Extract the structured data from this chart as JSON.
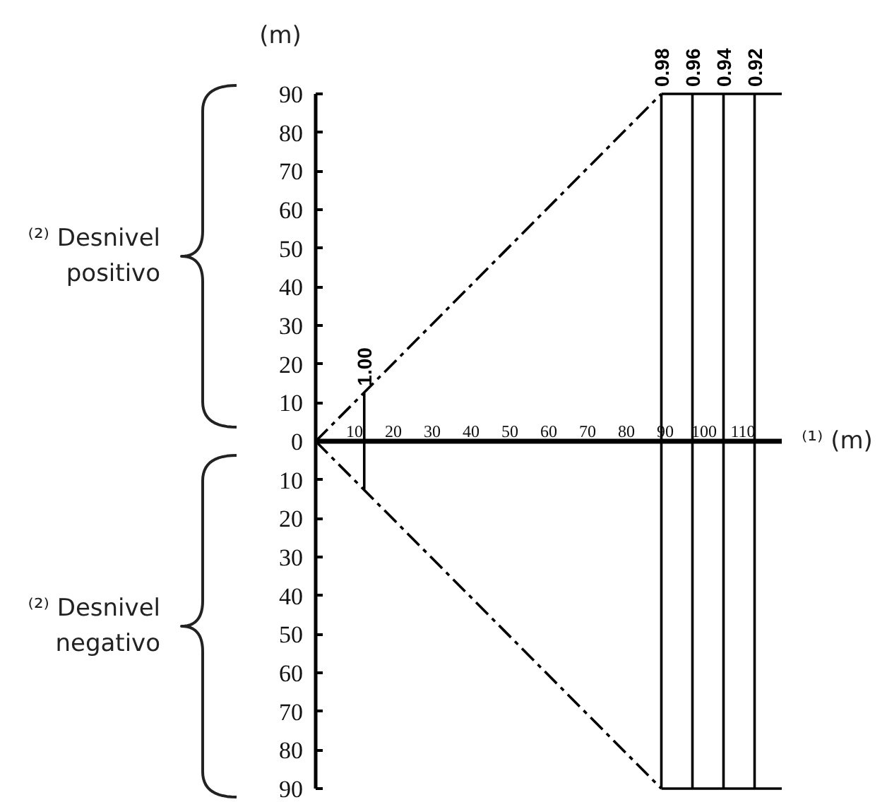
{
  "chart_data": {
    "type": "line",
    "xlabel": "⁽¹⁾ (m)",
    "ylabel": "(m)",
    "xlim": [
      0,
      120
    ],
    "xticks": [
      10,
      20,
      30,
      40,
      50,
      60,
      70,
      80,
      90,
      100,
      110
    ],
    "ylim": [
      -90,
      90
    ],
    "yticks": [
      {
        "value": -90,
        "label": "90"
      },
      {
        "value": -80,
        "label": "80"
      },
      {
        "value": -70,
        "label": "70"
      },
      {
        "value": -60,
        "label": "60"
      },
      {
        "value": -50,
        "label": "50"
      },
      {
        "value": -40,
        "label": "40"
      },
      {
        "value": -30,
        "label": "30"
      },
      {
        "value": -20,
        "label": "20"
      },
      {
        "value": -10,
        "label": "10"
      },
      0,
      10,
      20,
      30,
      40,
      50,
      60,
      70,
      80,
      90
    ],
    "series": [
      {
        "color": "#000000",
        "line_style": "dashed",
        "x": [
          0,
          89
        ],
        "values": [
          0,
          90
        ]
      },
      {
        "color": "#000000",
        "line_style": "dashed",
        "x": [
          0,
          89
        ],
        "values": [
          0,
          -90
        ]
      },
      {
        "color": "#000000",
        "x": [
          89,
          120
        ],
        "values": [
          90,
          90
        ]
      },
      {
        "color": "#000000",
        "x": [
          89,
          120
        ],
        "values": [
          -90,
          -90
        ]
      },
      {
        "name": "1.00",
        "color": "#000000",
        "x": [
          12.5,
          12.5
        ],
        "values": [
          12.5,
          -12.5
        ]
      },
      {
        "name": "0.98",
        "color": "#000000",
        "x": [
          89,
          89
        ],
        "values": [
          90,
          -90
        ]
      },
      {
        "name": "0.96",
        "color": "#000000",
        "x": [
          97,
          97
        ],
        "values": [
          90,
          -90
        ]
      },
      {
        "name": "0.94",
        "color": "#000000",
        "x": [
          105,
          105
        ],
        "values": [
          90,
          -90
        ]
      },
      {
        "name": "0.92",
        "color": "#000000",
        "x": [
          113,
          113
        ],
        "values": [
          90,
          -90
        ]
      }
    ],
    "annotations": [
      "⁽²⁾ Desnivel\npositivo",
      "⁽²⁾ Desnivel\nnegativo"
    ]
  }
}
